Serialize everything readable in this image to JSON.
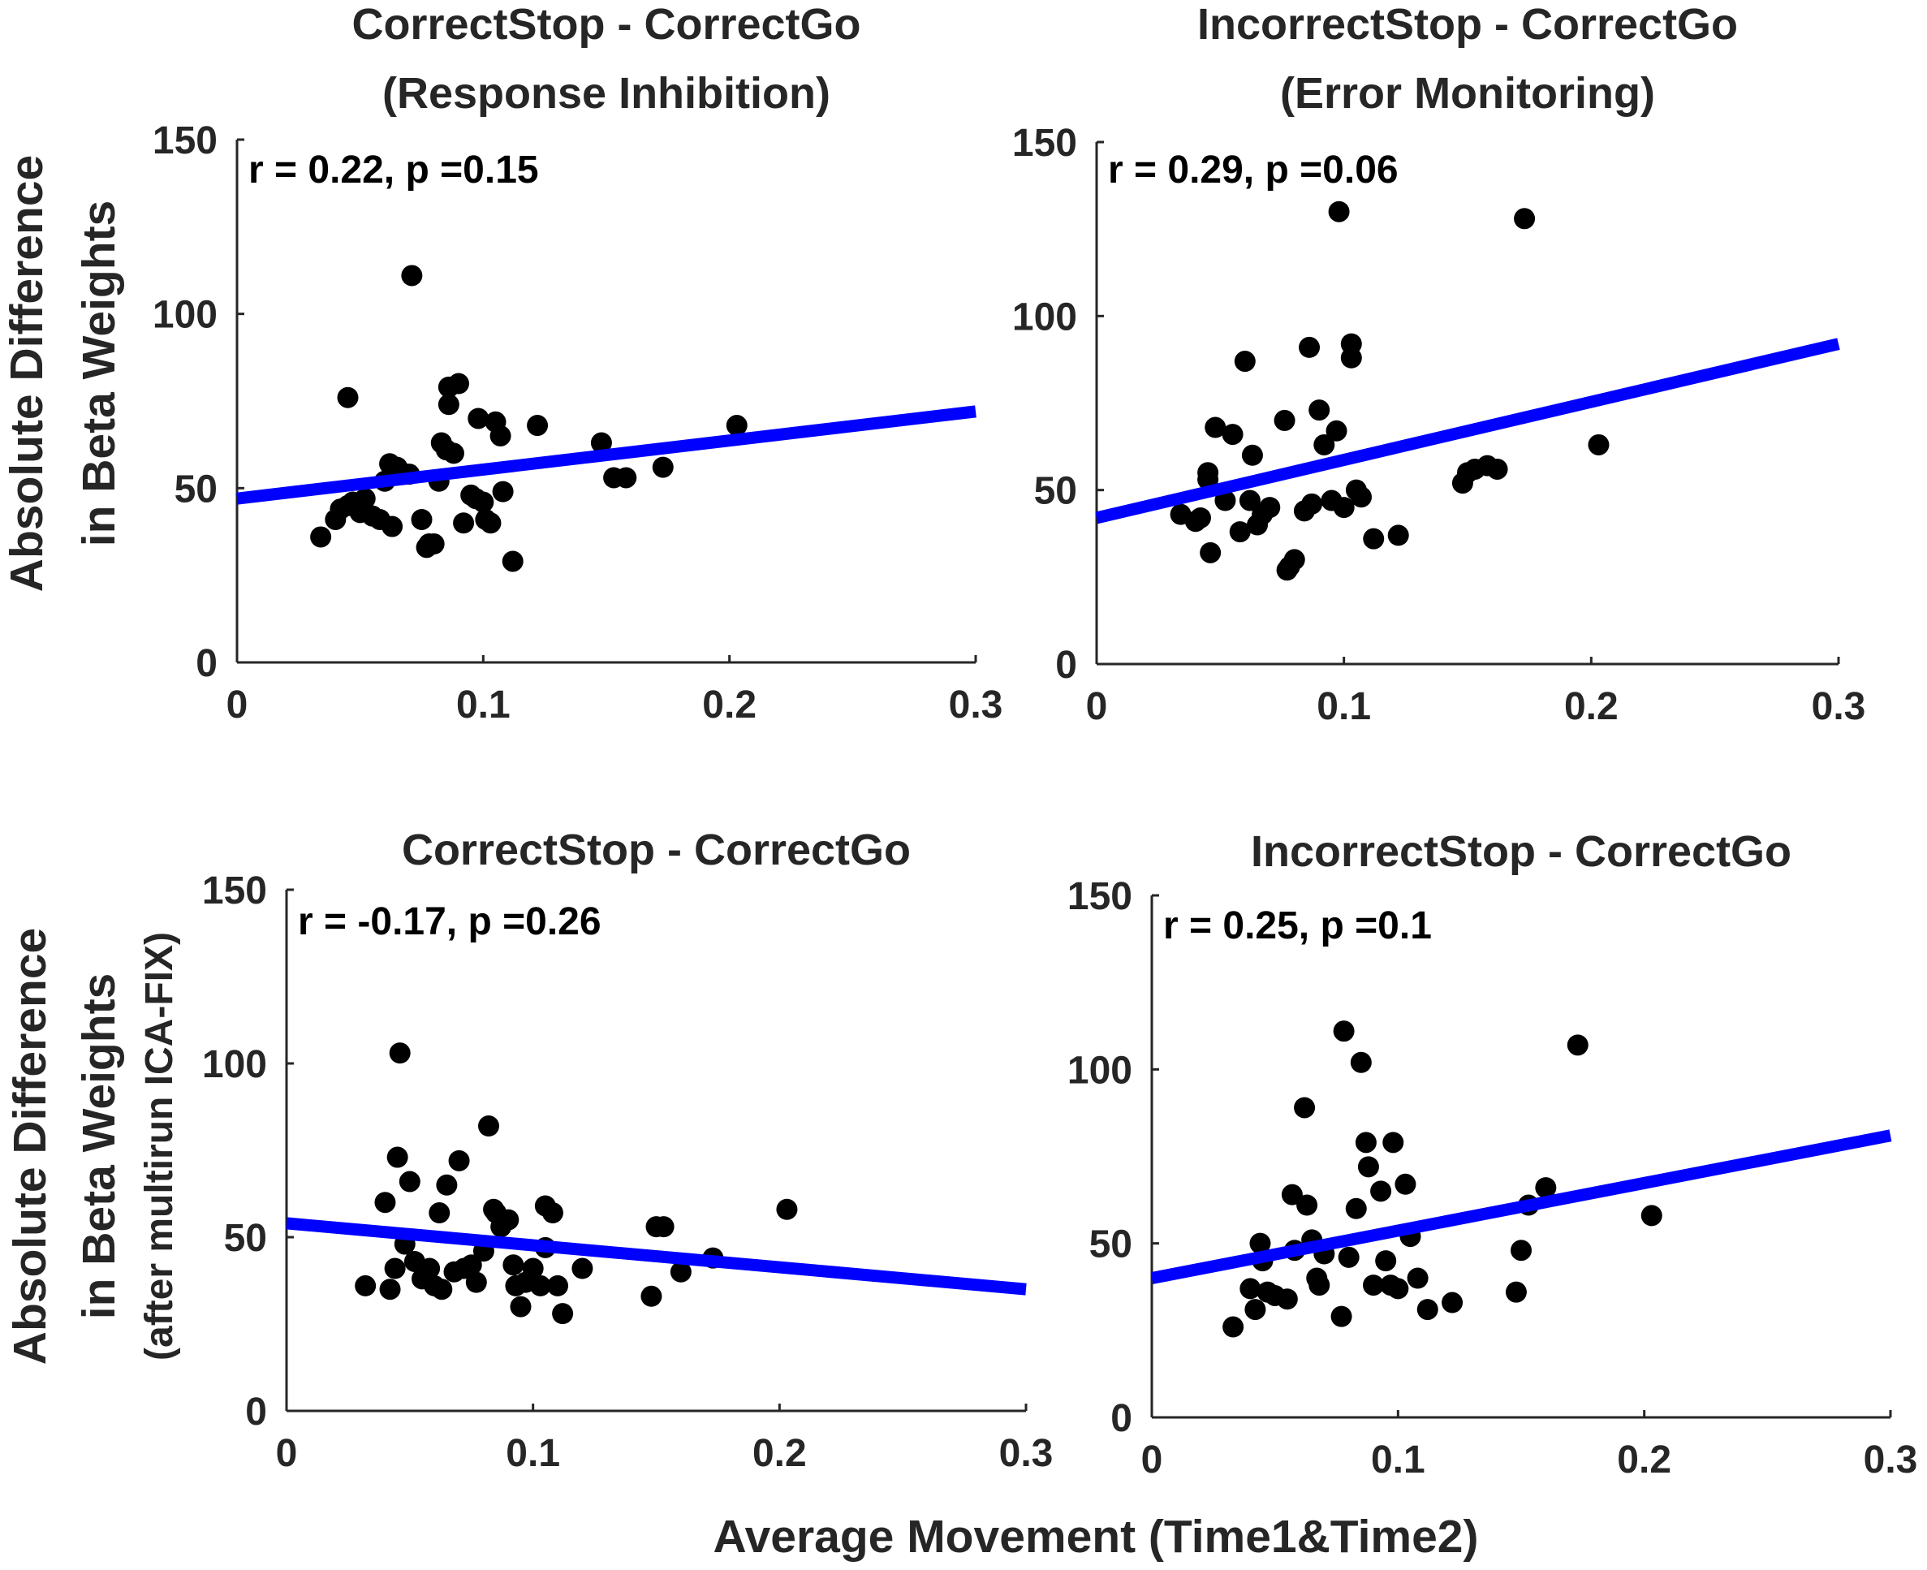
{
  "chart_data": [
    {
      "type": "scatter",
      "title": [
        "CorrectStop - CorrectGo",
        "(Response Inhibition)"
      ],
      "annotation": "r = 0.22, p =0.15",
      "xlim": [
        0,
        0.3
      ],
      "ylim": [
        0,
        150
      ],
      "xticks": [
        0,
        0.1,
        0.2,
        0.3
      ],
      "xtick_labels": [
        "0",
        "0.1",
        "0.2",
        "0.3"
      ],
      "yticks": [
        0,
        50,
        100,
        150
      ],
      "ytick_labels": [
        "0",
        "50",
        "100",
        "150"
      ],
      "x": [
        0.034,
        0.04,
        0.042,
        0.045,
        0.045,
        0.047,
        0.05,
        0.052,
        0.055,
        0.058,
        0.06,
        0.062,
        0.063,
        0.065,
        0.066,
        0.07,
        0.071,
        0.075,
        0.077,
        0.078,
        0.08,
        0.082,
        0.083,
        0.085,
        0.086,
        0.086,
        0.088,
        0.09,
        0.092,
        0.095,
        0.097,
        0.098,
        0.1,
        0.101,
        0.103,
        0.105,
        0.107,
        0.108,
        0.112,
        0.122,
        0.148,
        0.153,
        0.158,
        0.173,
        0.203
      ],
      "y": [
        36,
        41,
        44,
        45,
        76,
        46,
        43,
        47,
        42,
        41,
        52,
        57,
        39,
        56,
        55,
        54,
        111,
        41,
        33,
        34,
        34,
        52,
        63,
        61,
        74,
        79,
        60,
        80,
        40,
        48,
        47,
        70,
        46,
        41,
        40,
        69,
        65,
        49,
        29,
        68,
        63,
        53,
        53,
        56,
        68
      ],
      "fit_line": {
        "x": [
          0,
          0.3
        ],
        "y": [
          47,
          72
        ],
        "color": "#0000ff"
      },
      "marker_color": "#000000"
    },
    {
      "type": "scatter",
      "title": [
        "IncorrectStop - CorrectGo",
        "(Error Monitoring)"
      ],
      "annotation": "r = 0.29, p =0.06",
      "xlim": [
        0,
        0.3
      ],
      "ylim": [
        0,
        150
      ],
      "xticks": [
        0,
        0.1,
        0.2,
        0.3
      ],
      "xtick_labels": [
        "0",
        "0.1",
        "0.2",
        "0.3"
      ],
      "yticks": [
        0,
        50,
        100,
        150
      ],
      "ytick_labels": [
        "0",
        "50",
        "100",
        "150"
      ],
      "x": [
        0.034,
        0.04,
        0.042,
        0.045,
        0.045,
        0.046,
        0.048,
        0.052,
        0.055,
        0.058,
        0.06,
        0.062,
        0.063,
        0.065,
        0.067,
        0.07,
        0.076,
        0.077,
        0.078,
        0.08,
        0.084,
        0.086,
        0.087,
        0.09,
        0.092,
        0.095,
        0.097,
        0.098,
        0.1,
        0.103,
        0.103,
        0.105,
        0.107,
        0.112,
        0.122,
        0.148,
        0.15,
        0.153,
        0.158,
        0.162,
        0.173,
        0.203
      ],
      "y": [
        43,
        41,
        42,
        53,
        55,
        32,
        68,
        47,
        66,
        38,
        87,
        47,
        60,
        40,
        43,
        45,
        70,
        27,
        28,
        30,
        44,
        91,
        46,
        73,
        63,
        47,
        67,
        130,
        45,
        92,
        88,
        50,
        48,
        36,
        37,
        52,
        55,
        56,
        57,
        56,
        128,
        63
      ],
      "fit_line": {
        "x": [
          0,
          0.3
        ],
        "y": [
          42,
          92
        ],
        "color": "#0000ff"
      },
      "marker_color": "#000000"
    },
    {
      "type": "scatter",
      "title": [
        "CorrectStop - CorrectGo"
      ],
      "annotation": "r = -0.17, p =0.26",
      "xlim": [
        0,
        0.3
      ],
      "ylim": [
        0,
        150
      ],
      "xticks": [
        0,
        0.1,
        0.2,
        0.3
      ],
      "xtick_labels": [
        "0",
        "0.1",
        "0.2",
        "0.3"
      ],
      "yticks": [
        0,
        50,
        100,
        150
      ],
      "ytick_labels": [
        "0",
        "50",
        "100",
        "150"
      ],
      "x": [
        0.032,
        0.04,
        0.042,
        0.044,
        0.045,
        0.046,
        0.048,
        0.05,
        0.052,
        0.055,
        0.058,
        0.06,
        0.062,
        0.063,
        0.065,
        0.068,
        0.07,
        0.072,
        0.075,
        0.077,
        0.08,
        0.082,
        0.084,
        0.085,
        0.087,
        0.09,
        0.092,
        0.093,
        0.095,
        0.097,
        0.1,
        0.103,
        0.105,
        0.105,
        0.108,
        0.11,
        0.112,
        0.12,
        0.148,
        0.15,
        0.153,
        0.16,
        0.173,
        0.203
      ],
      "y": [
        36,
        60,
        35,
        41,
        73,
        103,
        48,
        66,
        43,
        38,
        41,
        36,
        57,
        35,
        65,
        40,
        72,
        41,
        42,
        37,
        46,
        82,
        58,
        57,
        53,
        55,
        42,
        36,
        30,
        37,
        41,
        36,
        47,
        59,
        57,
        36,
        28,
        41,
        33,
        53,
        53,
        40,
        44,
        58
      ],
      "fit_line": {
        "x": [
          0,
          0.3
        ],
        "y": [
          54,
          35
        ],
        "color": "#0000ff"
      },
      "marker_color": "#000000"
    },
    {
      "type": "scatter",
      "title": [
        "IncorrectStop - CorrectGo"
      ],
      "annotation": "r = 0.25, p =0.1",
      "xlim": [
        0,
        0.3
      ],
      "ylim": [
        0,
        150
      ],
      "xticks": [
        0,
        0.1,
        0.2,
        0.3
      ],
      "xtick_labels": [
        "0",
        "0.1",
        "0.2",
        "0.3"
      ],
      "yticks": [
        0,
        50,
        100,
        150
      ],
      "ytick_labels": [
        "0",
        "50",
        "100",
        "150"
      ],
      "x": [
        0.033,
        0.04,
        0.042,
        0.044,
        0.045,
        0.047,
        0.05,
        0.055,
        0.057,
        0.058,
        0.062,
        0.063,
        0.065,
        0.067,
        0.068,
        0.07,
        0.077,
        0.078,
        0.08,
        0.083,
        0.085,
        0.087,
        0.088,
        0.09,
        0.093,
        0.095,
        0.097,
        0.098,
        0.1,
        0.103,
        0.105,
        0.108,
        0.112,
        0.122,
        0.148,
        0.15,
        0.153,
        0.16,
        0.173,
        0.203
      ],
      "y": [
        26,
        37,
        31,
        50,
        45,
        36,
        35,
        34,
        64,
        48,
        89,
        61,
        51,
        40,
        38,
        47,
        29,
        111,
        46,
        60,
        102,
        79,
        72,
        38,
        65,
        45,
        38,
        79,
        37,
        67,
        52,
        40,
        31,
        33,
        36,
        48,
        61,
        66,
        107,
        58
      ],
      "fit_line": {
        "x": [
          0,
          0.3
        ],
        "y": [
          40,
          81
        ],
        "color": "#0000ff"
      },
      "marker_color": "#000000"
    }
  ],
  "labels": {
    "top_ylabel_line1": "Absolute Difference",
    "top_ylabel_line2": "in Beta Weights",
    "bottom_ylabel_line1": "Absolute Difference",
    "bottom_ylabel_line2": "in Beta Weights",
    "bottom_ylabel_line3": "(after multirun ICA-FIX)",
    "xlabel": "Average Movement (Time1&Time2)"
  }
}
